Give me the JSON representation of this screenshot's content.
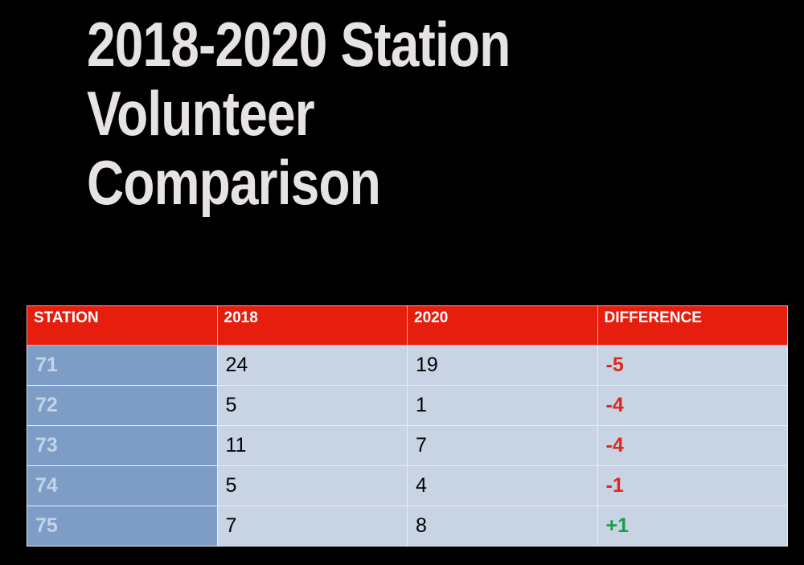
{
  "title_lines": [
    "2018-2020 Station",
    "Volunteer",
    "Comparison"
  ],
  "table": {
    "header": [
      "STATION",
      "2018",
      "2020",
      "DIFFERENCE"
    ],
    "rows": [
      [
        "71",
        "24",
        "19",
        "-5"
      ],
      [
        "72",
        "5",
        "1",
        "-4"
      ],
      [
        "73",
        "11",
        "7",
        "-4"
      ],
      [
        "74",
        "5",
        "4",
        "-1"
      ],
      [
        "75",
        "7",
        "8",
        "+1"
      ]
    ]
  }
}
